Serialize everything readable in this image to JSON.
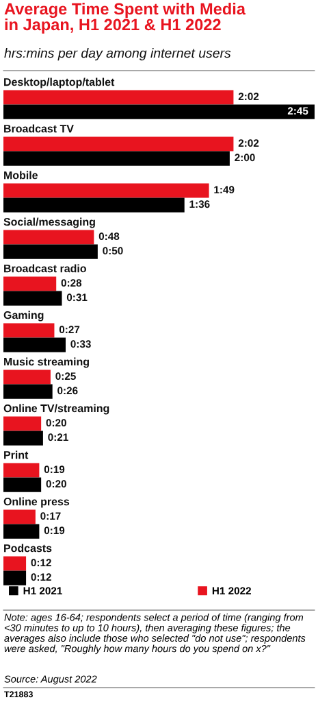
{
  "chart_data": {
    "type": "bar",
    "orientation": "horizontal",
    "title": "Average Time Spent with Media\nin Japan, H1 2021 & H1 2022",
    "subtitle": "hrs:mins per day among internet users",
    "categories": [
      "Desktop/laptop/tablet",
      "Broadcast TV",
      "Mobile",
      "Social/messaging",
      "Broadcast radio",
      "Gaming",
      "Music streaming",
      "Online TV/streaming",
      "Print",
      "Online press",
      "Podcasts"
    ],
    "series": [
      {
        "name": "H1 2022",
        "color": "#e8141f",
        "values": [
          122,
          122,
          109,
          48,
          28,
          27,
          25,
          20,
          19,
          17,
          12
        ],
        "value_labels": [
          "2:02",
          "2:02",
          "1:49",
          "0:48",
          "0:28",
          "0:27",
          "0:25",
          "0:20",
          "0:19",
          "0:17",
          "0:12"
        ]
      },
      {
        "name": "H1 2021",
        "color": "#000000",
        "values": [
          165,
          120,
          96,
          50,
          31,
          33,
          26,
          21,
          20,
          19,
          12
        ],
        "value_labels": [
          "2:45",
          "2:00",
          "1:36",
          "0:50",
          "0:31",
          "0:33",
          "0:26",
          "0:21",
          "0:20",
          "0:19",
          "0:12"
        ]
      }
    ],
    "legend": "bottom",
    "annotations": [
      "Note: ages 16-64; respondents select a period of time (ranging from <30 minutes to up to 10 hours), then averaging these figures; the averages also include those who selected \"do not use\"; respondents were asked, \"Roughly how many hours do you spend on x?\"",
      "Source: August 2022",
      "T21883"
    ]
  }
}
